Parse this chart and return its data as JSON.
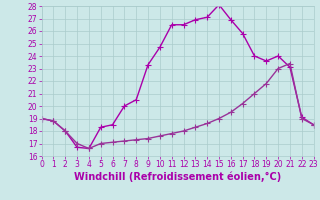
{
  "upper_x": [
    0,
    1,
    2,
    3,
    4,
    5,
    6,
    7,
    8,
    9,
    10,
    11,
    12,
    13,
    14,
    15,
    16,
    17,
    18,
    19,
    20,
    21,
    22,
    23
  ],
  "upper_y": [
    19.0,
    18.8,
    18.0,
    16.7,
    16.6,
    18.3,
    18.5,
    20.0,
    20.5,
    23.3,
    24.7,
    26.5,
    26.5,
    26.9,
    27.1,
    28.1,
    26.9,
    25.8,
    24.0,
    23.6,
    24.0,
    23.1,
    19.1,
    18.5
  ],
  "lower_x": [
    0,
    1,
    2,
    3,
    4,
    5,
    6,
    7,
    8,
    9,
    10,
    11,
    12,
    13,
    14,
    15,
    16,
    17,
    18,
    19,
    20,
    21,
    22,
    23
  ],
  "lower_y": [
    19.0,
    18.8,
    18.0,
    17.0,
    16.6,
    17.0,
    17.1,
    17.2,
    17.3,
    17.4,
    17.6,
    17.8,
    18.0,
    18.3,
    18.6,
    19.0,
    19.5,
    20.2,
    21.0,
    21.8,
    23.0,
    23.4,
    19.0,
    18.5
  ],
  "line_color": "#aa00aa",
  "bg_color": "#cce8e8",
  "grid_color": "#aacccc",
  "xlabel": "Windchill (Refroidissement éolien,°C)",
  "ylim": [
    16,
    28
  ],
  "xlim": [
    0,
    23
  ],
  "yticks": [
    16,
    17,
    18,
    19,
    20,
    21,
    22,
    23,
    24,
    25,
    26,
    27,
    28
  ],
  "xticks": [
    0,
    1,
    2,
    3,
    4,
    5,
    6,
    7,
    8,
    9,
    10,
    11,
    12,
    13,
    14,
    15,
    16,
    17,
    18,
    19,
    20,
    21,
    22,
    23
  ],
  "marker": "+",
  "markersize": 4,
  "linewidth": 1.0,
  "xlabel_fontsize": 7,
  "tick_fontsize": 5.5,
  "line_color_upper": "#aa00aa",
  "line_color_lower": "#993399"
}
